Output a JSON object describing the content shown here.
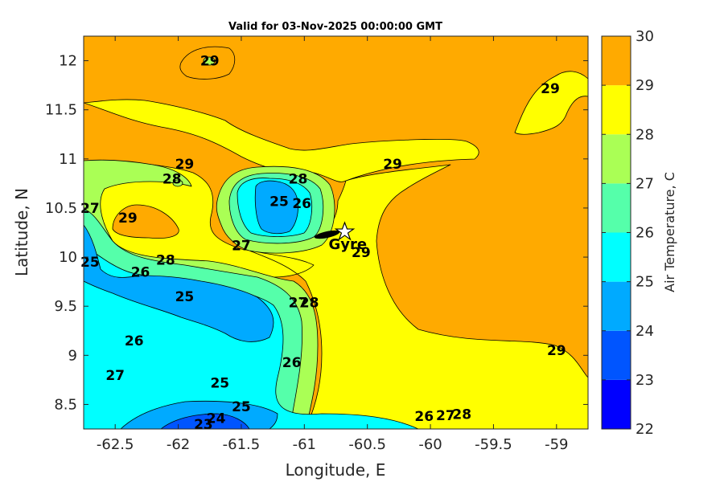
{
  "chart_data": {
    "type": "contour",
    "title": "Valid for 03-Nov-2025 00:00:00 GMT",
    "xlabel": "Longitude, E",
    "ylabel": "Latitude, N",
    "xlim": [
      -62.75,
      -58.75
    ],
    "ylim": [
      8.25,
      12.25
    ],
    "xticks": [
      -62.5,
      -62,
      -61.5,
      -61,
      -60.5,
      -60,
      -59.5,
      -59
    ],
    "xtick_labels": [
      "-62.5",
      "-62",
      "-61.5",
      "-61",
      "-60.5",
      "-60",
      "-59.5",
      "-59"
    ],
    "yticks": [
      8.5,
      9,
      9.5,
      10,
      10.5,
      11,
      11.5,
      12
    ],
    "ytick_labels": [
      "8.5",
      "9",
      "9.5",
      "10",
      "10.5",
      "11",
      "11.5",
      "12"
    ],
    "colorbar": {
      "label": "Air Temperature, C",
      "levels": [
        22,
        23,
        24,
        25,
        26,
        27,
        28,
        29,
        30
      ],
      "tick_labels": [
        "22",
        "23",
        "24",
        "25",
        "26",
        "27",
        "28",
        "29",
        "30"
      ],
      "colors": [
        "#0000ff",
        "#0055ff",
        "#00aaff",
        "#00ffff",
        "#55ffaa",
        "#aaff55",
        "#ffff00",
        "#ffaa00",
        "#ff5500"
      ]
    },
    "contour_labels": [
      {
        "lon": -61.75,
        "lat": 12.0,
        "text": "29"
      },
      {
        "lon": -59.05,
        "lat": 11.72,
        "text": "29"
      },
      {
        "lon": -61.95,
        "lat": 10.95,
        "text": "29"
      },
      {
        "lon": -60.3,
        "lat": 10.95,
        "text": "29"
      },
      {
        "lon": -62.05,
        "lat": 10.8,
        "text": "28"
      },
      {
        "lon": -61.05,
        "lat": 10.8,
        "text": "28"
      },
      {
        "lon": -61.2,
        "lat": 10.57,
        "text": "25"
      },
      {
        "lon": -61.02,
        "lat": 10.55,
        "text": "26"
      },
      {
        "lon": -62.7,
        "lat": 10.5,
        "text": "27"
      },
      {
        "lon": -62.4,
        "lat": 10.4,
        "text": "29"
      },
      {
        "lon": -61.5,
        "lat": 10.12,
        "text": "27"
      },
      {
        "lon": -60.55,
        "lat": 10.05,
        "text": "29"
      },
      {
        "lon": -62.1,
        "lat": 9.97,
        "text": "28"
      },
      {
        "lon": -62.7,
        "lat": 9.95,
        "text": "25"
      },
      {
        "lon": -62.3,
        "lat": 9.85,
        "text": "26"
      },
      {
        "lon": -61.95,
        "lat": 9.6,
        "text": "25"
      },
      {
        "lon": -61.05,
        "lat": 9.54,
        "text": "27"
      },
      {
        "lon": -60.96,
        "lat": 9.54,
        "text": "28"
      },
      {
        "lon": -62.35,
        "lat": 9.15,
        "text": "26"
      },
      {
        "lon": -59.0,
        "lat": 9.05,
        "text": "29"
      },
      {
        "lon": -61.1,
        "lat": 8.93,
        "text": "26"
      },
      {
        "lon": -62.5,
        "lat": 8.8,
        "text": "27"
      },
      {
        "lon": -61.67,
        "lat": 8.72,
        "text": "25"
      },
      {
        "lon": -61.5,
        "lat": 8.48,
        "text": "25"
      },
      {
        "lon": -60.05,
        "lat": 8.38,
        "text": "26"
      },
      {
        "lon": -59.88,
        "lat": 8.39,
        "text": "27"
      },
      {
        "lon": -59.75,
        "lat": 8.4,
        "text": "28"
      },
      {
        "lon": -61.7,
        "lat": 8.36,
        "text": "24"
      },
      {
        "lon": -61.8,
        "lat": 8.3,
        "text": "23"
      }
    ],
    "stations": [
      {
        "name": "Gyre",
        "lon": -60.68,
        "lat": 10.27
      }
    ]
  }
}
